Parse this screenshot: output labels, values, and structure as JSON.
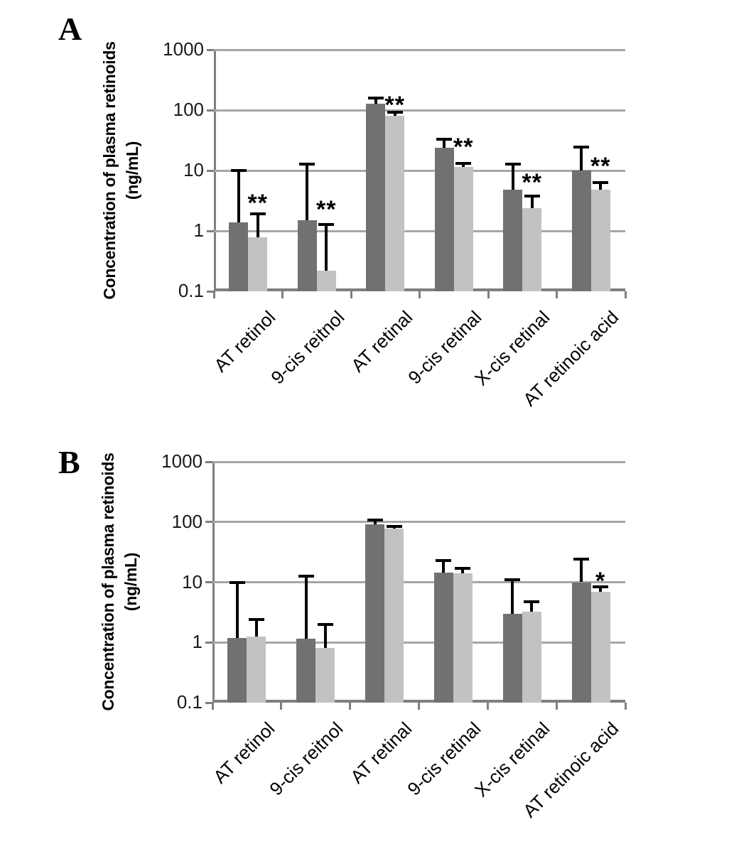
{
  "chart_data": [
    {
      "type": "bar",
      "panel_label": "A",
      "y_scale": "log",
      "ylim": [
        0.1,
        1000
      ],
      "y_ticks": [
        "1000",
        "100",
        "10",
        "1",
        "0.1"
      ],
      "ylabel_line1": "Concentration of plasma retinoids",
      "ylabel_line2": "(ng/mL)",
      "grid": true,
      "legend": "none",
      "categories": [
        "AT retinol",
        "9-cis reitnol",
        "AT retinal",
        "9-cis retinal",
        "X-cis retinal",
        "AT retinoic acid"
      ],
      "series": [
        {
          "name": "dark-gray-bars",
          "color": "#717171",
          "values": [
            1.4,
            1.5,
            128,
            24,
            4.8,
            10
          ],
          "error_top": [
            9.5,
            12,
            150,
            31,
            12,
            23
          ]
        },
        {
          "name": "light-gray-bars",
          "color": "#c2c2c2",
          "values": [
            0.78,
            0.22,
            81,
            11.5,
            2.4,
            4.8
          ],
          "error_top": [
            1.8,
            1.2,
            88,
            12.3,
            3.6,
            6
          ]
        }
      ],
      "significance": [
        {
          "category_index": 0,
          "marker": "**",
          "y": 3.3
        },
        {
          "category_index": 1,
          "marker": "**",
          "y": 2.6
        },
        {
          "category_index": 2,
          "marker": "**",
          "y": 140
        },
        {
          "category_index": 3,
          "marker": "**",
          "y": 28
        },
        {
          "category_index": 4,
          "marker": "**",
          "y": 7.2
        },
        {
          "category_index": 5,
          "marker": "**",
          "y": 13.5
        }
      ]
    },
    {
      "type": "bar",
      "panel_label": "B",
      "y_scale": "log",
      "ylim": [
        0.1,
        1000
      ],
      "y_ticks": [
        "1000",
        "100",
        "10",
        "1",
        "0.1"
      ],
      "ylabel_line1": "Concentration of plasma retinoids",
      "ylabel_line2": "(ng/mL)",
      "grid": true,
      "legend": "none",
      "categories": [
        "AT retinol",
        "9-cis reitnol",
        "AT retinal",
        "9-cis retinal",
        "X-cis retinal",
        "AT retinoic acid"
      ],
      "series": [
        {
          "name": "dark-gray-bars",
          "color": "#717171",
          "values": [
            1.2,
            1.15,
            91,
            14.5,
            3.0,
            10
          ],
          "error_top": [
            9.3,
            12,
            102,
            21.5,
            10.5,
            23
          ]
        },
        {
          "name": "light-gray-bars",
          "color": "#c2c2c2",
          "values": [
            1.25,
            0.8,
            77,
            14,
            3.2,
            6.9
          ],
          "error_top": [
            2.3,
            1.9,
            81,
            16,
            4.5,
            8
          ]
        }
      ],
      "significance": [
        {
          "category_index": 5,
          "marker": "*",
          "y": 12
        }
      ]
    }
  ],
  "colors": {
    "dark_bar": "#717171",
    "light_bar": "#c2c2c2",
    "gridline": "#a6a6a6",
    "axis": "#7f7f7f",
    "error_bar": "#000000"
  }
}
